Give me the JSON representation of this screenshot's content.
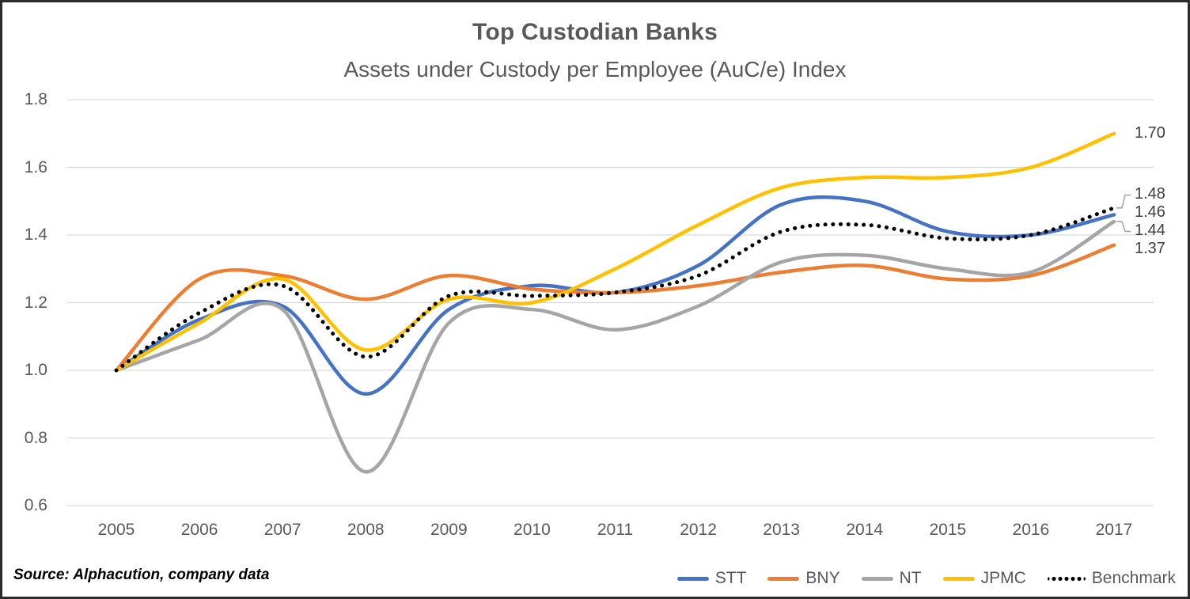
{
  "header": {
    "title": "Top Custodian Banks",
    "subtitle": "Assets under Custody per Employee (AuC/e) Index"
  },
  "source_note": "Source: Alphacution, company data",
  "chart_data": {
    "type": "line",
    "title": "Top Custodian Banks",
    "subtitle": "Assets under Custody per Employee (AuC/e) Index",
    "x": [
      2005,
      2006,
      2007,
      2008,
      2009,
      2010,
      2011,
      2012,
      2013,
      2014,
      2015,
      2016,
      2017
    ],
    "xtick_labels": [
      "2005",
      "2006",
      "2007",
      "2008",
      "2009",
      "2010",
      "2011",
      "2012",
      "2013",
      "2014",
      "2015",
      "2016",
      "2017"
    ],
    "series": [
      {
        "name": "STT",
        "color": "#4472C4",
        "style": "solid",
        "values": [
          1.0,
          1.15,
          1.19,
          0.93,
          1.18,
          1.25,
          1.23,
          1.31,
          1.49,
          1.5,
          1.41,
          1.4,
          1.46
        ],
        "end_label": "1.46"
      },
      {
        "name": "BNY",
        "color": "#ED7D31",
        "style": "solid",
        "values": [
          1.0,
          1.27,
          1.28,
          1.21,
          1.28,
          1.24,
          1.23,
          1.25,
          1.29,
          1.31,
          1.27,
          1.28,
          1.37
        ],
        "end_label": "1.37"
      },
      {
        "name": "NT",
        "color": "#A5A5A5",
        "style": "solid",
        "values": [
          1.0,
          1.09,
          1.18,
          0.7,
          1.14,
          1.18,
          1.12,
          1.19,
          1.32,
          1.34,
          1.3,
          1.29,
          1.44
        ],
        "end_label": "1.44"
      },
      {
        "name": "JPMC",
        "color": "#FFC000",
        "style": "solid",
        "values": [
          1.0,
          1.14,
          1.27,
          1.06,
          1.21,
          1.2,
          1.3,
          1.43,
          1.54,
          1.57,
          1.57,
          1.6,
          1.7
        ],
        "end_label": "1.70"
      },
      {
        "name": "Benchmark",
        "color": "#000000",
        "style": "dotted",
        "values": [
          1.0,
          1.17,
          1.25,
          1.04,
          1.22,
          1.22,
          1.23,
          1.28,
          1.41,
          1.43,
          1.39,
          1.4,
          1.48
        ],
        "end_label": "1.48"
      }
    ],
    "ylim": [
      0.6,
      1.8
    ],
    "ytick_labels": [
      "1.8",
      "1.6",
      "1.4",
      "1.2",
      "1.0",
      "0.8",
      "0.6"
    ],
    "yticks": [
      1.8,
      1.6,
      1.4,
      1.2,
      1.0,
      0.8,
      0.6
    ],
    "grid": "horizontal-only",
    "legend_position": "bottom-right",
    "gridline_color": "#D9D9D9",
    "leader_line_color": "#A6A6A6"
  }
}
